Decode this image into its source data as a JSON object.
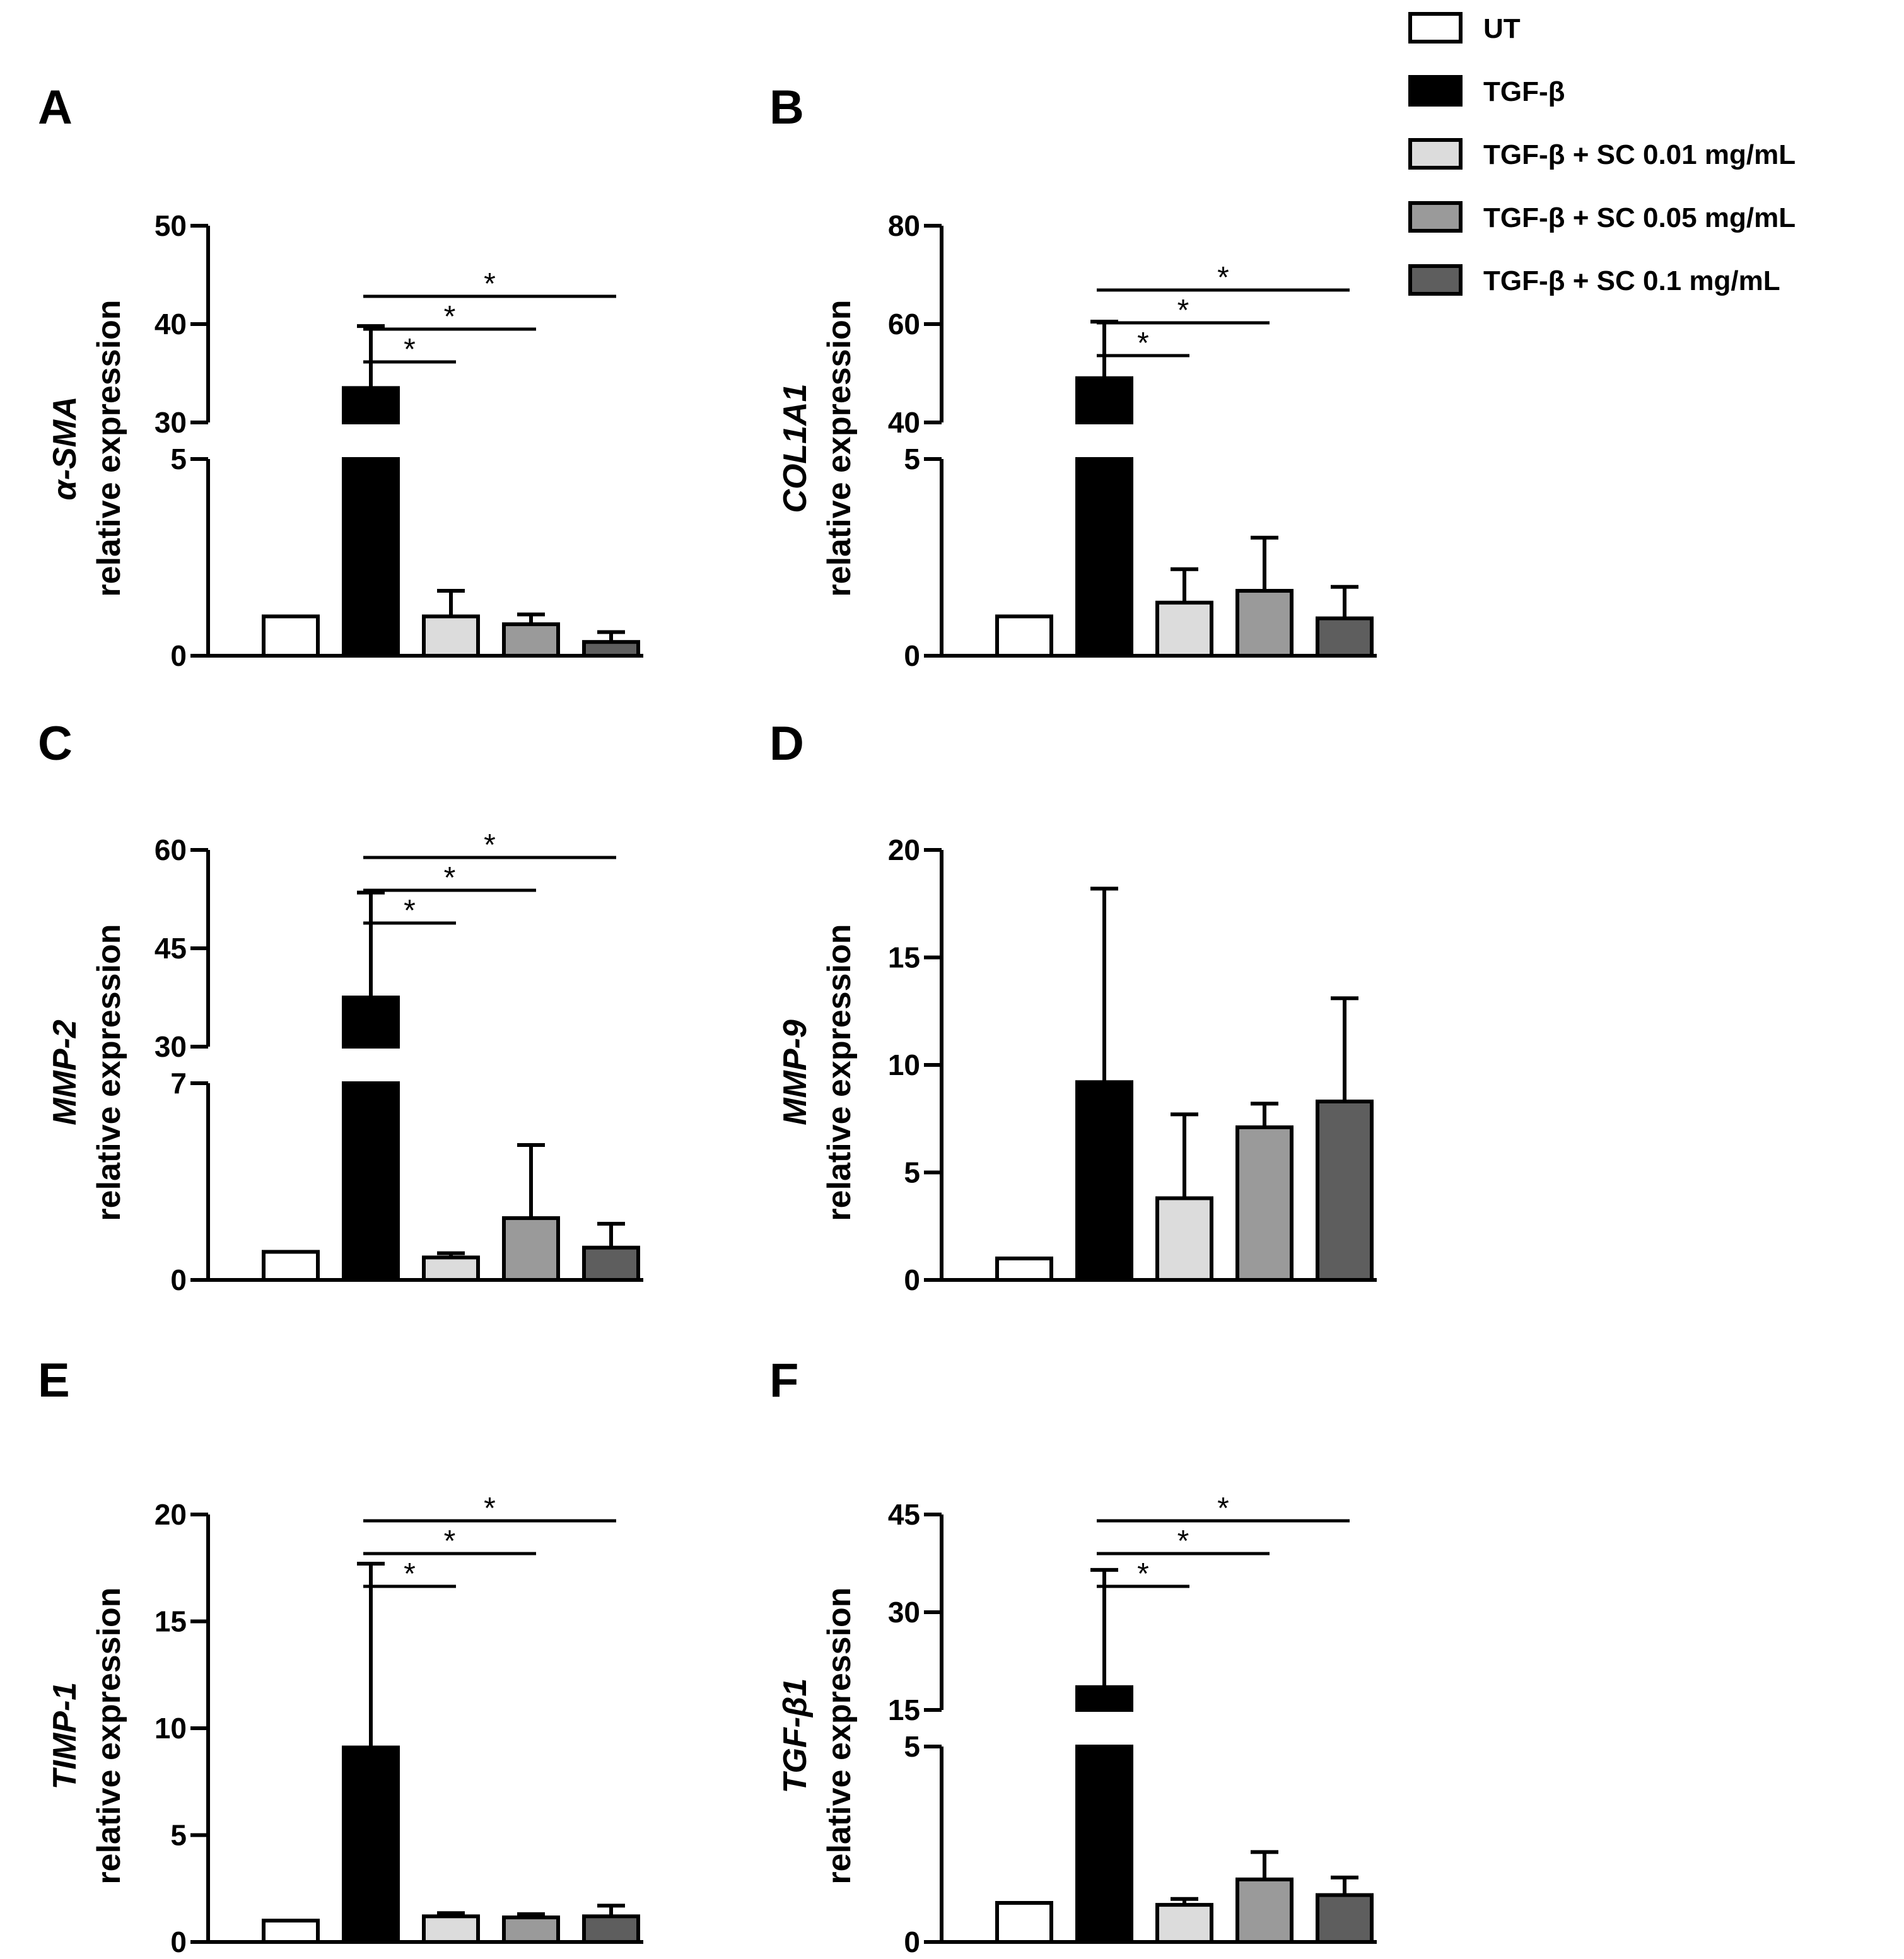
{
  "legend": {
    "items": [
      {
        "label": "UT",
        "color": "#ffffff"
      },
      {
        "label": "TGF-β",
        "color": "#000000"
      },
      {
        "label": "TGF-β + SC 0.01 mg/mL",
        "color": "#dcdcdc"
      },
      {
        "label": "TGF-β + SC 0.05 mg/mL",
        "color": "#9a9a9a"
      },
      {
        "label": "TGF-β + SC 0.1 mg/mL",
        "color": "#5e5e5e"
      }
    ]
  },
  "chart_data": [
    {
      "panel": "A",
      "type": "bar",
      "ylabel_gene": "α-SMA",
      "ylabel": "relative expression",
      "categories": [
        "UT",
        "TGF-β",
        "TGF-β + SC 0.01 mg/mL",
        "TGF-β + SC 0.05 mg/mL",
        "TGF-β + SC 0.1 mg/mL"
      ],
      "values": [
        1,
        33.5,
        1,
        0.8,
        0.35
      ],
      "errors": [
        0,
        6.3,
        0.65,
        0.25,
        0.25
      ],
      "broken_axis": true,
      "lower": {
        "min": 0,
        "max": 5,
        "ticks": [
          {
            "v": 0,
            "label": "0"
          },
          {
            "v": 5,
            "label": "5"
          }
        ]
      },
      "upper": {
        "min": 30,
        "max": 50,
        "ticks": [
          {
            "v": 30,
            "label": "30"
          },
          {
            "v": 40,
            "label": "40"
          },
          {
            "v": 50,
            "label": "50"
          }
        ]
      },
      "significance": [
        {
          "from": 1,
          "to": 2,
          "label": "*"
        },
        {
          "from": 1,
          "to": 3,
          "label": "*"
        },
        {
          "from": 1,
          "to": 4,
          "label": "*"
        }
      ]
    },
    {
      "panel": "B",
      "type": "bar",
      "ylabel_gene": "COL1A1",
      "ylabel": "relative expression",
      "categories": [
        "UT",
        "TGF-β",
        "TGF-β + SC 0.01 mg/mL",
        "TGF-β + SC 0.05 mg/mL",
        "TGF-β + SC 0.1 mg/mL"
      ],
      "values": [
        1,
        49,
        1.35,
        1.65,
        0.95
      ],
      "errors": [
        0,
        11.5,
        0.85,
        1.35,
        0.8
      ],
      "broken_axis": true,
      "lower": {
        "min": 0,
        "max": 5,
        "ticks": [
          {
            "v": 0,
            "label": "0"
          },
          {
            "v": 5,
            "label": "5"
          }
        ]
      },
      "upper": {
        "min": 40,
        "max": 80,
        "ticks": [
          {
            "v": 40,
            "label": "40"
          },
          {
            "v": 60,
            "label": "60"
          },
          {
            "v": 80,
            "label": "80"
          }
        ]
      },
      "significance": [
        {
          "from": 1,
          "to": 2,
          "label": "*"
        },
        {
          "from": 1,
          "to": 3,
          "label": "*"
        },
        {
          "from": 1,
          "to": 4,
          "label": "*"
        }
      ]
    },
    {
      "panel": "C",
      "type": "bar",
      "ylabel_gene": "MMP-2",
      "ylabel": "relative expression",
      "categories": [
        "UT",
        "TGF-β",
        "TGF-β + SC 0.01 mg/mL",
        "TGF-β + SC 0.05 mg/mL",
        "TGF-β + SC 0.1 mg/mL"
      ],
      "values": [
        1,
        37.5,
        0.8,
        2.2,
        1.15
      ],
      "errors": [
        0,
        16,
        0.15,
        2.6,
        0.85
      ],
      "broken_axis": true,
      "lower": {
        "min": 0,
        "max": 7,
        "ticks": [
          {
            "v": 0,
            "label": "0"
          },
          {
            "v": 7,
            "label": "7"
          }
        ]
      },
      "upper": {
        "min": 30,
        "max": 60,
        "ticks": [
          {
            "v": 30,
            "label": "30"
          },
          {
            "v": 45,
            "label": "45"
          },
          {
            "v": 60,
            "label": "60"
          }
        ]
      },
      "significance": [
        {
          "from": 1,
          "to": 2,
          "label": "*"
        },
        {
          "from": 1,
          "to": 3,
          "label": "*"
        },
        {
          "from": 1,
          "to": 4,
          "label": "*"
        }
      ]
    },
    {
      "panel": "D",
      "type": "bar",
      "ylabel_gene": "MMP-9",
      "ylabel": "relative expression",
      "categories": [
        "UT",
        "TGF-β",
        "TGF-β + SC 0.01 mg/mL",
        "TGF-β + SC 0.05 mg/mL",
        "TGF-β + SC 0.1 mg/mL"
      ],
      "values": [
        1,
        9.2,
        3.8,
        7.1,
        8.3
      ],
      "errors": [
        0,
        9,
        3.9,
        1.1,
        4.8
      ],
      "broken_axis": false,
      "ylim": [
        0,
        20
      ],
      "ticks": [
        {
          "v": 0,
          "label": "0"
        },
        {
          "v": 5,
          "label": "5"
        },
        {
          "v": 10,
          "label": "10"
        },
        {
          "v": 15,
          "label": "15"
        },
        {
          "v": 20,
          "label": "20"
        }
      ],
      "significance": []
    },
    {
      "panel": "E",
      "type": "bar",
      "ylabel_gene": "TIMP-1",
      "ylabel": "relative expression",
      "categories": [
        "UT",
        "TGF-β",
        "TGF-β + SC 0.01 mg/mL",
        "TGF-β + SC 0.05 mg/mL",
        "TGF-β + SC 0.1 mg/mL"
      ],
      "values": [
        1,
        9.1,
        1.2,
        1.15,
        1.2
      ],
      "errors": [
        0,
        8.6,
        0.15,
        0.15,
        0.5
      ],
      "broken_axis": false,
      "ylim": [
        0,
        20
      ],
      "ticks": [
        {
          "v": 0,
          "label": "0"
        },
        {
          "v": 5,
          "label": "5"
        },
        {
          "v": 10,
          "label": "10"
        },
        {
          "v": 15,
          "label": "15"
        },
        {
          "v": 20,
          "label": "20"
        }
      ],
      "significance": [
        {
          "from": 1,
          "to": 2,
          "label": "*"
        },
        {
          "from": 1,
          "to": 3,
          "label": "*"
        },
        {
          "from": 1,
          "to": 4,
          "label": "*"
        }
      ]
    },
    {
      "panel": "F",
      "type": "bar",
      "ylabel_gene": "TGF-β1",
      "ylabel": "relative expression",
      "categories": [
        "UT",
        "TGF-β",
        "TGF-β + SC 0.01 mg/mL",
        "TGF-β + SC 0.05 mg/mL",
        "TGF-β + SC 0.1 mg/mL"
      ],
      "values": [
        1,
        18.5,
        0.95,
        1.6,
        1.2
      ],
      "errors": [
        0,
        18,
        0.15,
        0.7,
        0.45
      ],
      "broken_axis": true,
      "lower": {
        "min": 0,
        "max": 5,
        "ticks": [
          {
            "v": 0,
            "label": "0"
          },
          {
            "v": 5,
            "label": "5"
          }
        ]
      },
      "upper": {
        "min": 15,
        "max": 45,
        "ticks": [
          {
            "v": 15,
            "label": "15"
          },
          {
            "v": 30,
            "label": "30"
          },
          {
            "v": 45,
            "label": "45"
          }
        ]
      },
      "significance": [
        {
          "from": 1,
          "to": 2,
          "label": "*"
        },
        {
          "from": 1,
          "to": 3,
          "label": "*"
        },
        {
          "from": 1,
          "to": 4,
          "label": "*"
        }
      ]
    }
  ]
}
